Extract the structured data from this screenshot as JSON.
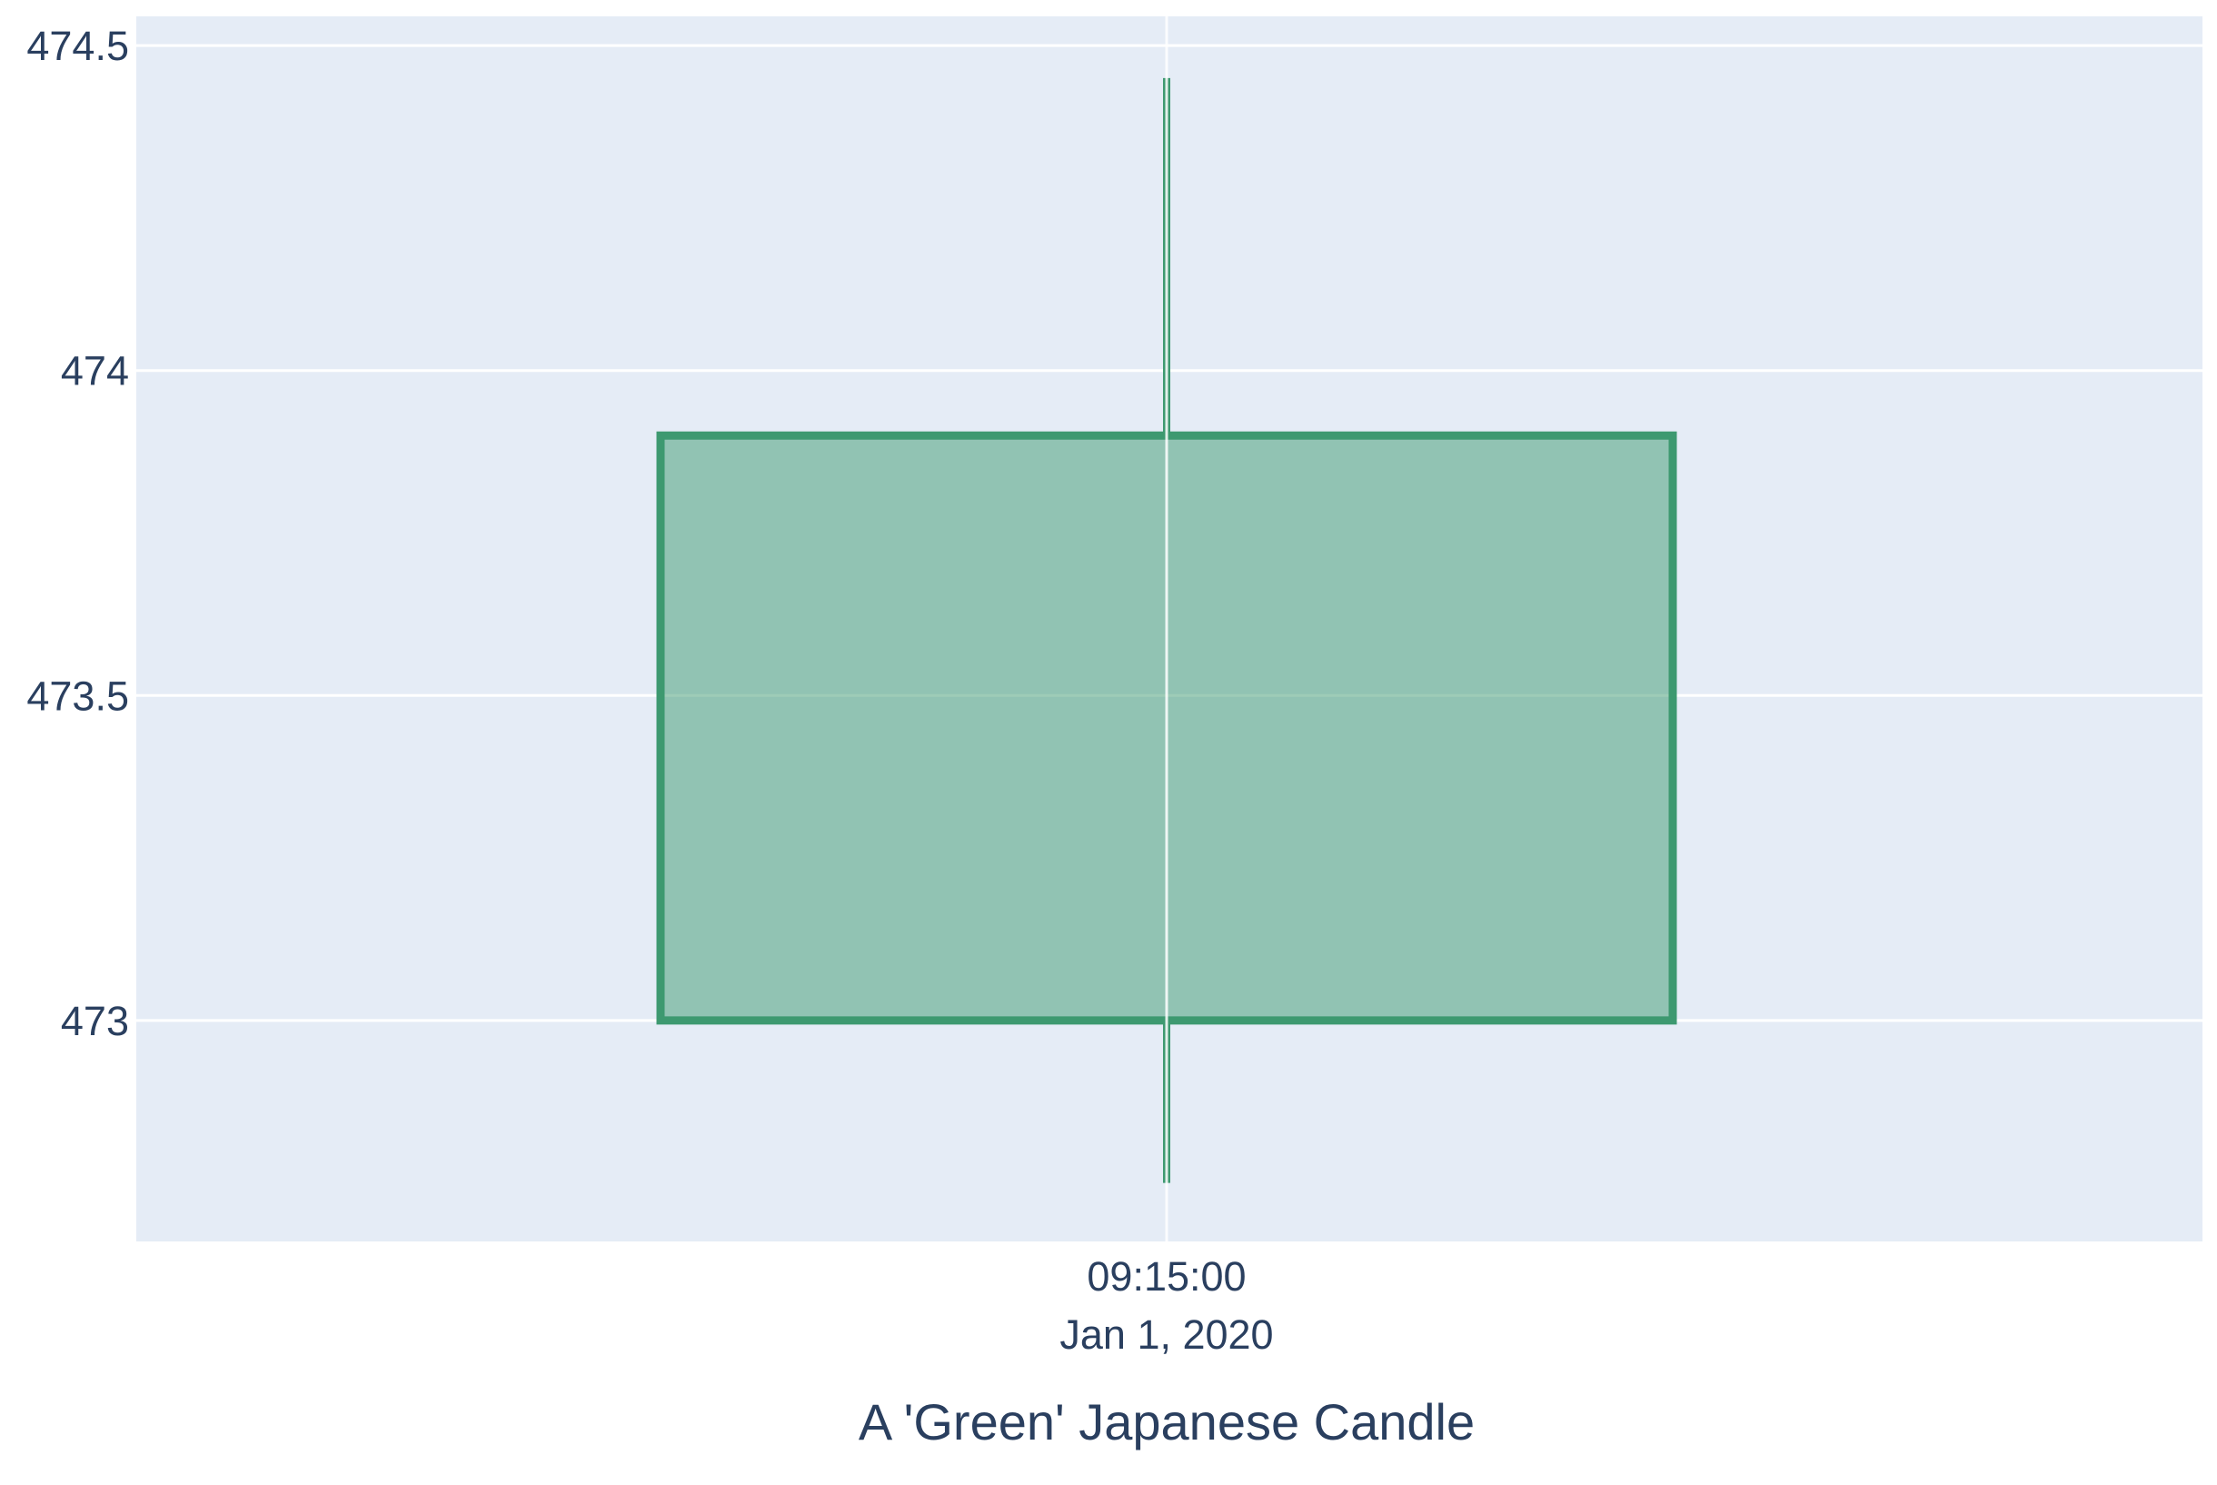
{
  "chart_data": {
    "type": "candlestick",
    "xlabel": "A 'Green' Japanese Candle",
    "ylabel": "",
    "ylim": [
      472.66,
      474.545
    ],
    "y_ticks": [
      473,
      473.5,
      474,
      474.5
    ],
    "y_tick_labels": [
      "473",
      "473.5",
      "474",
      "474.5"
    ],
    "x_tick_labels": [
      {
        "time": "09:15:00",
        "date": "Jan 1, 2020"
      }
    ],
    "grid": true,
    "legend": "none",
    "candles": [
      {
        "x": "2020-01-01 09:15:00",
        "open": 473.0,
        "high": 474.45,
        "low": 472.75,
        "close": 473.9,
        "direction": "increasing"
      }
    ],
    "colors": {
      "plot_background": "#e5ecf6",
      "grid": "#ffffff",
      "increasing_line": "#3d9970",
      "increasing_fill": "rgba(61,153,112,0.5)",
      "text": "#2a3f5f"
    }
  }
}
